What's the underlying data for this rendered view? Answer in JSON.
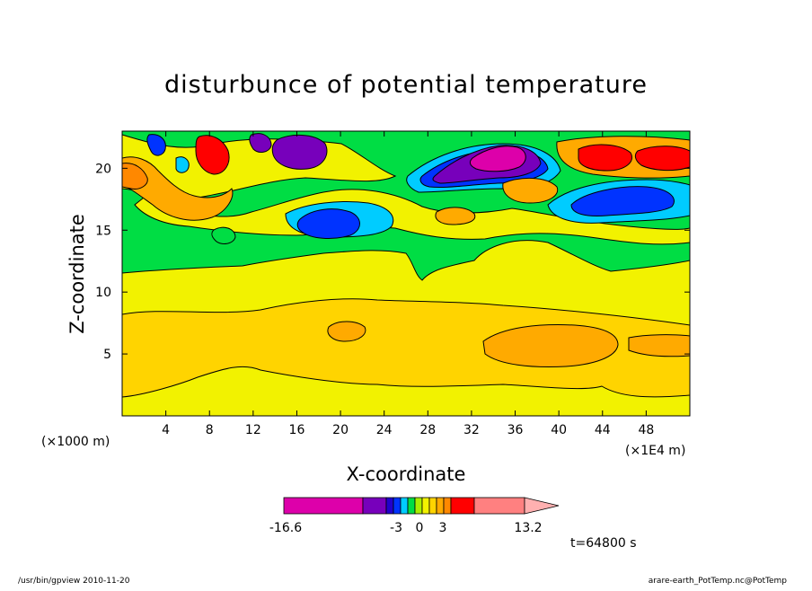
{
  "chart_data": {
    "type": "heatmap",
    "title": "disturbunce of potential temperature",
    "xlabel": "X-coordinate",
    "ylabel": "Z-coordinate",
    "x_unit_left": "(×1000 m)",
    "x_unit_right": "(×1E4 m)",
    "xlim": [
      0,
      52
    ],
    "ylim": [
      0,
      23
    ],
    "x_ticks": [
      4,
      8,
      12,
      16,
      20,
      24,
      28,
      32,
      36,
      40,
      44,
      48
    ],
    "y_ticks": [
      5,
      10,
      15,
      20
    ],
    "colorbar": {
      "min_label": "-16.6",
      "max_label": "13.2",
      "mid_labels": [
        "-3",
        "0",
        "3"
      ],
      "colors": [
        "#dd00aa",
        "#7700bb",
        "#2200cc",
        "#0033ff",
        "#00ccff",
        "#00dd44",
        "#aaee00",
        "#f2f200",
        "#ffd400",
        "#ffaa00",
        "#ff8800",
        "#ff0000",
        "#ff8080",
        "#ffb0b0"
      ]
    },
    "time_label": "t=64800 s"
  },
  "footer": {
    "left": "/usr/bin/gpview   2010-11-20",
    "right": "arare-earth_PotTemp.nc@PotTemp"
  }
}
